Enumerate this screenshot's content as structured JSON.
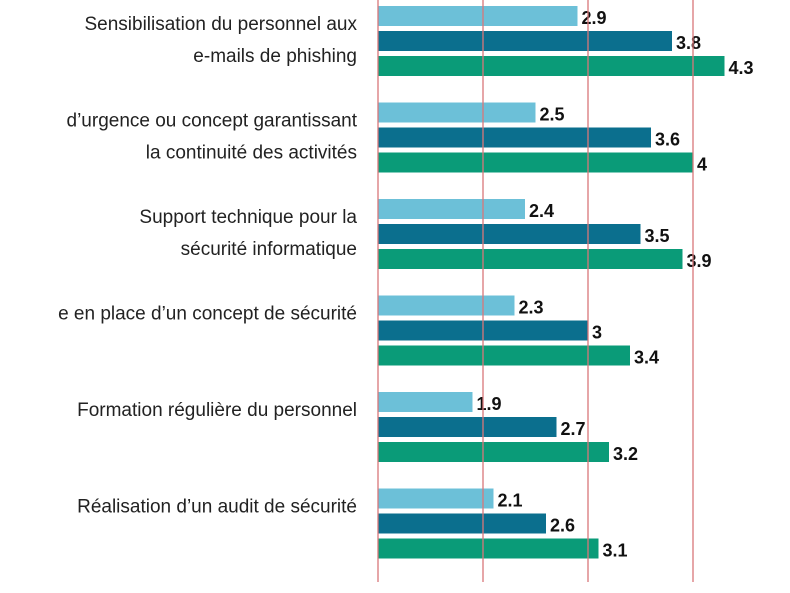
{
  "chart_data": {
    "type": "bar",
    "orientation": "horizontal",
    "categories": [
      [
        "Sensibilisation du personnel aux",
        "e-mails de phishing"
      ],
      [
        "d’urgence ou concept garantissant",
        "la continuité des activités"
      ],
      [
        "Support technique pour la",
        "sécurité informatique"
      ],
      [
        "e en place d’un concept de sécurité"
      ],
      [
        "Formation régulière du personnel"
      ],
      [
        "Réalisation d’un audit de sécurité"
      ]
    ],
    "series": [
      {
        "color": "#6cc0d8",
        "values": [
          2.9,
          2.5,
          2.4,
          2.3,
          1.9,
          2.1
        ]
      },
      {
        "color": "#0b6f8e",
        "values": [
          3.8,
          3.6,
          3.5,
          3.0,
          2.7,
          2.6
        ]
      },
      {
        "color": "#0a9b78",
        "values": [
          4.3,
          4.0,
          3.9,
          3.4,
          3.2,
          3.1
        ]
      }
    ],
    "xlim": [
      1,
      5
    ],
    "xticks": [
      1,
      2,
      3,
      4
    ],
    "grid": true,
    "grid_color": "#d9777a"
  }
}
